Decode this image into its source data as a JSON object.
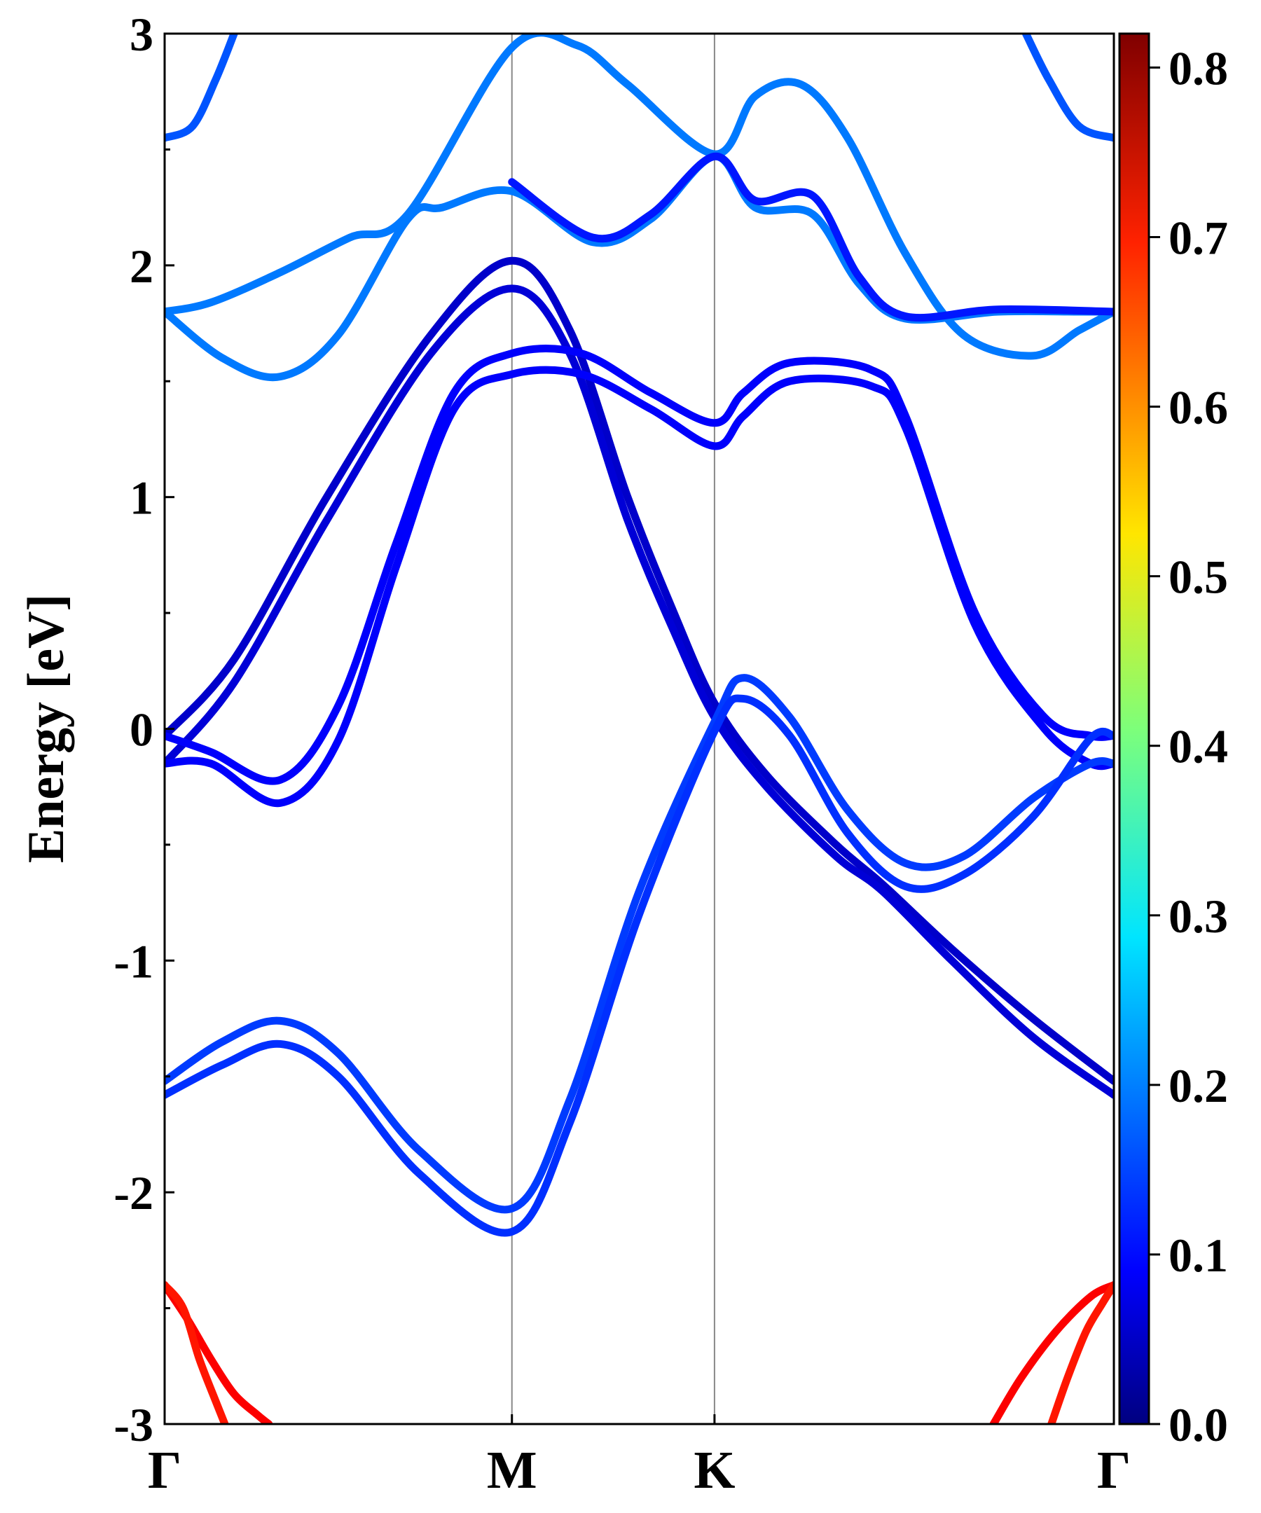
{
  "chart_data": {
    "type": "line",
    "title": "",
    "xlabel": "",
    "ylabel": "Energy [eV]",
    "ylim": [
      -3,
      3
    ],
    "yticks": [
      "-3",
      "-2",
      "-1",
      "0",
      "1",
      "2",
      "3"
    ],
    "kpoints": [
      {
        "label": "Γ",
        "x": 0.0
      },
      {
        "label": "M",
        "x": 1.5
      },
      {
        "label": "K",
        "x": 2.375
      },
      {
        "label": "Γ",
        "x": 4.1
      }
    ],
    "colorbar": {
      "min": 0.0,
      "max": 0.82,
      "tick_values": [
        0.0,
        0.1,
        0.2,
        0.3,
        0.4,
        0.5,
        0.6,
        0.7,
        0.8
      ],
      "tick_labels": [
        "0.0",
        "0.1",
        "0.2",
        "0.3",
        "0.4",
        "0.5",
        "0.6",
        "0.7",
        "0.8"
      ],
      "colormap": "jet"
    },
    "series": [
      {
        "weight": 0.17,
        "points": [
          [
            0.0,
            2.55
          ],
          [
            0.12,
            2.6
          ],
          [
            0.22,
            2.8
          ],
          [
            0.3,
            3.0
          ]
        ]
      },
      {
        "weight": 0.17,
        "points": [
          [
            3.72,
            3.0
          ],
          [
            3.82,
            2.8
          ],
          [
            3.95,
            2.6
          ],
          [
            4.1,
            2.55
          ]
        ]
      },
      {
        "weight": 0.2,
        "points": [
          [
            0.0,
            1.8
          ],
          [
            0.2,
            1.84
          ],
          [
            0.5,
            1.97
          ],
          [
            0.8,
            2.12
          ],
          [
            1.05,
            2.22
          ],
          [
            1.5,
            2.94
          ],
          [
            1.78,
            2.95
          ],
          [
            2.0,
            2.78
          ],
          [
            2.375,
            2.48
          ],
          [
            2.55,
            2.73
          ],
          [
            2.75,
            2.78
          ],
          [
            2.95,
            2.55
          ],
          [
            3.2,
            2.05
          ],
          [
            3.45,
            1.7
          ],
          [
            3.75,
            1.61
          ],
          [
            3.95,
            1.72
          ],
          [
            4.1,
            1.8
          ]
        ]
      },
      {
        "weight": 0.2,
        "points": [
          [
            0.0,
            1.8
          ],
          [
            0.25,
            1.6
          ],
          [
            0.5,
            1.52
          ],
          [
            0.75,
            1.7
          ],
          [
            1.05,
            2.2
          ],
          [
            1.2,
            2.25
          ],
          [
            1.5,
            2.32
          ],
          [
            1.85,
            2.1
          ],
          [
            2.1,
            2.2
          ],
          [
            2.375,
            2.47
          ],
          [
            2.55,
            2.25
          ],
          [
            2.8,
            2.22
          ],
          [
            3.0,
            1.92
          ],
          [
            3.2,
            1.77
          ],
          [
            3.6,
            1.8
          ],
          [
            3.95,
            1.8
          ],
          [
            4.1,
            1.8
          ]
        ]
      },
      {
        "weight": 0.12,
        "points": [
          [
            1.5,
            2.36
          ],
          [
            1.85,
            2.12
          ],
          [
            2.1,
            2.22
          ],
          [
            2.375,
            2.47
          ],
          [
            2.55,
            2.28
          ],
          [
            2.8,
            2.3
          ],
          [
            3.0,
            1.95
          ],
          [
            3.2,
            1.78
          ],
          [
            3.6,
            1.81
          ],
          [
            4.1,
            1.8
          ]
        ]
      },
      {
        "weight": 0.06,
        "points": [
          [
            0.0,
            -0.03
          ],
          [
            0.3,
            0.3
          ],
          [
            0.7,
            1.0
          ],
          [
            1.15,
            1.7
          ],
          [
            1.5,
            2.02
          ],
          [
            1.75,
            1.72
          ],
          [
            2.0,
            1.0
          ],
          [
            2.2,
            0.5
          ],
          [
            2.375,
            0.11
          ],
          [
            2.6,
            -0.2
          ],
          [
            2.9,
            -0.5
          ],
          [
            3.1,
            -0.67
          ],
          [
            3.4,
            -0.95
          ],
          [
            3.75,
            -1.25
          ],
          [
            4.1,
            -1.52
          ]
        ]
      },
      {
        "weight": 0.07,
        "points": [
          [
            0.0,
            -0.15
          ],
          [
            0.3,
            0.2
          ],
          [
            0.7,
            0.9
          ],
          [
            1.15,
            1.62
          ],
          [
            1.5,
            1.9
          ],
          [
            1.75,
            1.62
          ],
          [
            2.0,
            0.9
          ],
          [
            2.2,
            0.42
          ],
          [
            2.375,
            0.05
          ],
          [
            2.6,
            -0.25
          ],
          [
            2.9,
            -0.55
          ],
          [
            3.1,
            -0.7
          ],
          [
            3.4,
            -1.0
          ],
          [
            3.75,
            -1.33
          ],
          [
            4.1,
            -1.58
          ]
        ]
      },
      {
        "weight": 0.1,
        "points": [
          [
            0.0,
            -0.03
          ],
          [
            0.2,
            -0.1
          ],
          [
            0.5,
            -0.22
          ],
          [
            0.75,
            0.1
          ],
          [
            1.0,
            0.8
          ],
          [
            1.25,
            1.45
          ],
          [
            1.5,
            1.62
          ],
          [
            1.8,
            1.62
          ],
          [
            2.1,
            1.45
          ],
          [
            2.375,
            1.32
          ],
          [
            2.5,
            1.45
          ],
          [
            2.7,
            1.58
          ],
          [
            3.05,
            1.55
          ],
          [
            3.2,
            1.35
          ],
          [
            3.5,
            0.5
          ],
          [
            3.8,
            0.05
          ],
          [
            4.0,
            -0.03
          ],
          [
            4.1,
            -0.03
          ]
        ]
      },
      {
        "weight": 0.1,
        "points": [
          [
            0.0,
            -0.15
          ],
          [
            0.2,
            -0.15
          ],
          [
            0.5,
            -0.32
          ],
          [
            0.75,
            -0.05
          ],
          [
            1.0,
            0.7
          ],
          [
            1.25,
            1.38
          ],
          [
            1.5,
            1.53
          ],
          [
            1.8,
            1.53
          ],
          [
            2.1,
            1.38
          ],
          [
            2.375,
            1.22
          ],
          [
            2.5,
            1.35
          ],
          [
            2.7,
            1.5
          ],
          [
            3.05,
            1.48
          ],
          [
            3.2,
            1.3
          ],
          [
            3.5,
            0.45
          ],
          [
            3.8,
            0.0
          ],
          [
            4.0,
            -0.15
          ],
          [
            4.1,
            -0.15
          ]
        ]
      },
      {
        "weight": 0.15,
        "points": [
          [
            0.0,
            -1.52
          ],
          [
            0.25,
            -1.35
          ],
          [
            0.5,
            -1.26
          ],
          [
            0.75,
            -1.4
          ],
          [
            1.1,
            -1.82
          ],
          [
            1.5,
            -2.07
          ],
          [
            1.75,
            -1.6
          ],
          [
            2.05,
            -0.7
          ],
          [
            2.375,
            0.03
          ],
          [
            2.5,
            0.22
          ],
          [
            2.7,
            0.05
          ],
          [
            2.95,
            -0.35
          ],
          [
            3.2,
            -0.58
          ],
          [
            3.45,
            -0.55
          ],
          [
            3.75,
            -0.3
          ],
          [
            4.0,
            -0.15
          ],
          [
            4.1,
            -0.15
          ]
        ]
      },
      {
        "weight": 0.14,
        "points": [
          [
            0.0,
            -1.58
          ],
          [
            0.25,
            -1.45
          ],
          [
            0.5,
            -1.36
          ],
          [
            0.75,
            -1.5
          ],
          [
            1.1,
            -1.92
          ],
          [
            1.5,
            -2.17
          ],
          [
            1.75,
            -1.7
          ],
          [
            2.05,
            -0.8
          ],
          [
            2.375,
            -0.01
          ],
          [
            2.5,
            0.13
          ],
          [
            2.7,
            -0.03
          ],
          [
            2.95,
            -0.45
          ],
          [
            3.2,
            -0.68
          ],
          [
            3.45,
            -0.63
          ],
          [
            3.75,
            -0.38
          ],
          [
            4.0,
            -0.04
          ],
          [
            4.1,
            -0.03
          ]
        ]
      },
      {
        "weight": 0.72,
        "points": [
          [
            0.0,
            -2.4
          ],
          [
            0.1,
            -2.55
          ],
          [
            0.2,
            -2.72
          ],
          [
            0.3,
            -2.87
          ],
          [
            0.4,
            -2.96
          ],
          [
            0.45,
            -3.0
          ]
        ]
      },
      {
        "weight": 0.7,
        "points": [
          [
            0.0,
            -2.4
          ],
          [
            0.08,
            -2.5
          ],
          [
            0.15,
            -2.72
          ],
          [
            0.22,
            -2.9
          ],
          [
            0.26,
            -3.0
          ]
        ]
      },
      {
        "weight": 0.72,
        "points": [
          [
            3.58,
            -3.0
          ],
          [
            3.7,
            -2.8
          ],
          [
            3.85,
            -2.6
          ],
          [
            4.0,
            -2.45
          ],
          [
            4.1,
            -2.4
          ]
        ]
      },
      {
        "weight": 0.7,
        "points": [
          [
            3.83,
            -3.0
          ],
          [
            3.9,
            -2.8
          ],
          [
            3.98,
            -2.6
          ],
          [
            4.05,
            -2.48
          ],
          [
            4.1,
            -2.4
          ]
        ]
      }
    ]
  }
}
